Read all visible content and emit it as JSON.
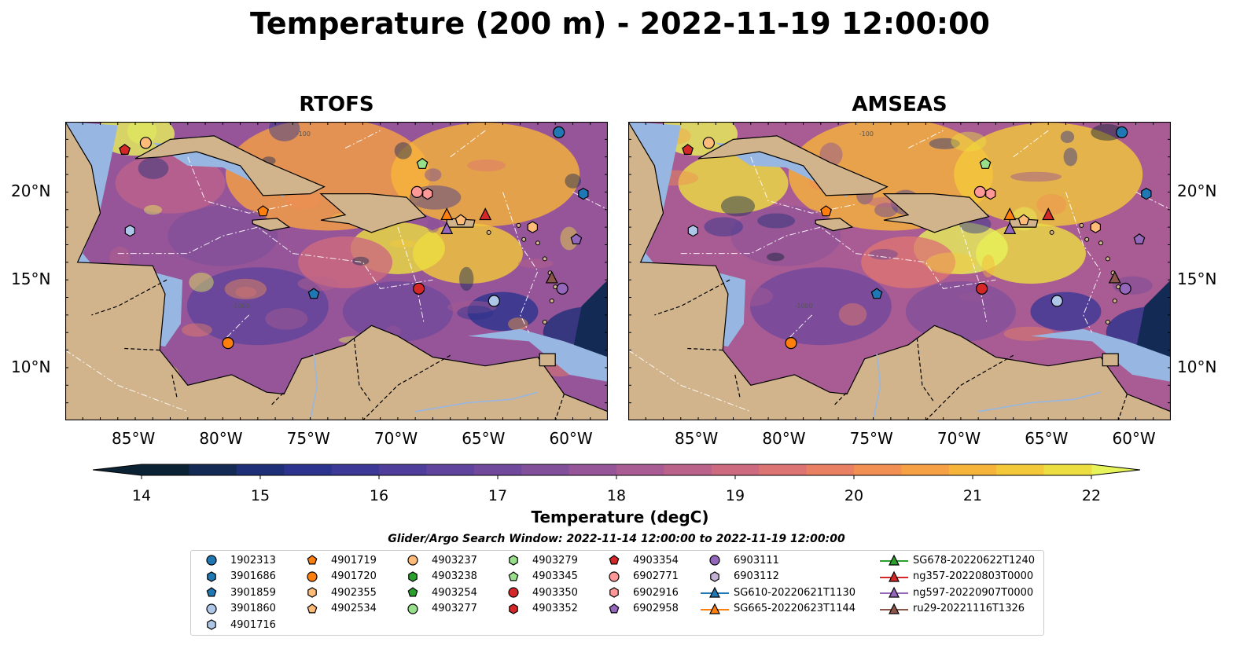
{
  "title": "Temperature (200 m) - 2022-11-19 12:00:00",
  "panels": [
    {
      "title": "RTOFS",
      "palette_shift": 0
    },
    {
      "title": "AMSEAS",
      "palette_shift": 1
    }
  ],
  "map": {
    "lon_range": [
      -89,
      -58
    ],
    "lat_range": [
      7,
      24
    ],
    "lon_ticks": [
      "85°W",
      "80°W",
      "75°W",
      "70°W",
      "65°W",
      "60°W"
    ],
    "lon_tick_values": [
      -85,
      -80,
      -75,
      -70,
      -65,
      -60
    ],
    "lat_ticks": [
      "20°N",
      "15°N",
      "10°N"
    ],
    "lat_tick_values": [
      20,
      15,
      10
    ],
    "contour_labels": [
      "-100",
      "-1000"
    ],
    "land_color": "#d2b48c",
    "shelf_color": "#97b6e1"
  },
  "colorbar": {
    "label": "Temperature (degC)",
    "min": 14,
    "max": 22,
    "ticks": [
      "14",
      "15",
      "16",
      "17",
      "18",
      "19",
      "20",
      "21",
      "22"
    ],
    "colors": [
      "#0b2235",
      "#132b54",
      "#1e2f78",
      "#2b338e",
      "#3b3897",
      "#4e3d9b",
      "#5f439c",
      "#70499c",
      "#82509a",
      "#955598",
      "#a85c93",
      "#bb628b",
      "#cd6a80",
      "#dc7473",
      "#e98064",
      "#f28f53",
      "#f6a143",
      "#f7b43a",
      "#f4c939",
      "#ecde41",
      "#e7f35a"
    ]
  },
  "search_window": "Glider/Argo Search Window: 2022-11-14 12:00:00 to 2022-11-19 12:00:00",
  "legend": [
    {
      "label": "1902313",
      "marker": "circle",
      "color": "#1f77b4"
    },
    {
      "label": "3901686",
      "marker": "hexagon",
      "color": "#1f77b4"
    },
    {
      "label": "3901859",
      "marker": "pentagon",
      "color": "#1f77b4"
    },
    {
      "label": "3901860",
      "marker": "circle",
      "color": "#aec7e8"
    },
    {
      "label": "4901716",
      "marker": "hexagon",
      "color": "#aec7e8"
    },
    {
      "label": "4901719",
      "marker": "pentagon",
      "color": "#ff7f0e"
    },
    {
      "label": "4901720",
      "marker": "circle",
      "color": "#ff7f0e"
    },
    {
      "label": "4902355",
      "marker": "hexagon",
      "color": "#ffbb78"
    },
    {
      "label": "4902534",
      "marker": "pentagon",
      "color": "#ffbb78"
    },
    {
      "label": "4903237",
      "marker": "circle",
      "color": "#ffbb78"
    },
    {
      "label": "4903238",
      "marker": "hexagon",
      "color": "#2ca02c"
    },
    {
      "label": "4903254",
      "marker": "pentagon",
      "color": "#2ca02c"
    },
    {
      "label": "4903277",
      "marker": "circle",
      "color": "#98df8a"
    },
    {
      "label": "4903279",
      "marker": "hexagon",
      "color": "#98df8a"
    },
    {
      "label": "4903345",
      "marker": "pentagon",
      "color": "#98df8a"
    },
    {
      "label": "4903350",
      "marker": "circle",
      "color": "#d62728"
    },
    {
      "label": "4903352",
      "marker": "hexagon",
      "color": "#d62728"
    },
    {
      "label": "4903354",
      "marker": "pentagon",
      "color": "#d62728"
    },
    {
      "label": "6902771",
      "marker": "circle",
      "color": "#ff9896"
    },
    {
      "label": "6902916",
      "marker": "hexagon",
      "color": "#ff9896"
    },
    {
      "label": "6902958",
      "marker": "pentagon",
      "color": "#9467bd"
    },
    {
      "label": "6903111",
      "marker": "circle",
      "color": "#9467bd"
    },
    {
      "label": "6903112",
      "marker": "hexagon",
      "color": "#c5b0d5"
    },
    {
      "label": "SG610-20220621T1130",
      "marker": "triangle-line",
      "color": "#1f77b4"
    },
    {
      "label": "SG665-20220623T1144",
      "marker": "triangle-line",
      "color": "#ff7f0e"
    },
    {
      "label": "SG678-20220622T1240",
      "marker": "triangle-line",
      "color": "#2ca02c"
    },
    {
      "label": "ng357-20220803T0000",
      "marker": "triangle-line",
      "color": "#d62728"
    },
    {
      "label": "ng597-20220907T0000",
      "marker": "triangle-line",
      "color": "#9467bd"
    },
    {
      "label": "ru29-20221116T1326",
      "marker": "triangle-line",
      "color": "#8c564b"
    }
  ],
  "floats": [
    {
      "id": "1902313",
      "lon": -60.8,
      "lat": 23.4
    },
    {
      "id": "3901686",
      "lon": -59.4,
      "lat": 19.9
    },
    {
      "id": "3901859",
      "lon": -74.8,
      "lat": 14.2
    },
    {
      "id": "3901860",
      "lon": -64.5,
      "lat": 13.8
    },
    {
      "id": "4901716",
      "lon": -85.3,
      "lat": 17.8
    },
    {
      "id": "4901719",
      "lon": -77.7,
      "lat": 18.9
    },
    {
      "id": "4901720",
      "lon": -79.7,
      "lat": 11.4
    },
    {
      "id": "4902355",
      "lon": -62.3,
      "lat": 18.0
    },
    {
      "id": "4902534",
      "lon": -66.4,
      "lat": 18.4
    },
    {
      "id": "4903237",
      "lon": -84.4,
      "lat": 22.8
    },
    {
      "id": "4903345",
      "lon": -68.6,
      "lat": 21.6
    },
    {
      "id": "4903350",
      "lon": -68.8,
      "lat": 14.5
    },
    {
      "id": "4903354",
      "lon": -85.6,
      "lat": 22.4
    },
    {
      "id": "6902771",
      "lon": -68.9,
      "lat": 20.0
    },
    {
      "id": "6902916",
      "lon": -68.3,
      "lat": 19.9
    },
    {
      "id": "6902958",
      "lon": -59.8,
      "lat": 17.3
    },
    {
      "id": "6903111",
      "lon": -60.6,
      "lat": 14.5
    },
    {
      "id": "SG665-20220623T1144",
      "lon": -67.2,
      "lat": 18.7
    },
    {
      "id": "ng357-20220803T0000",
      "lon": -65.0,
      "lat": 18.7
    },
    {
      "id": "ng597-20220907T0000",
      "lon": -67.2,
      "lat": 17.9
    },
    {
      "id": "ru29-20221116T1326",
      "lon": -61.2,
      "lat": 15.1
    }
  ]
}
